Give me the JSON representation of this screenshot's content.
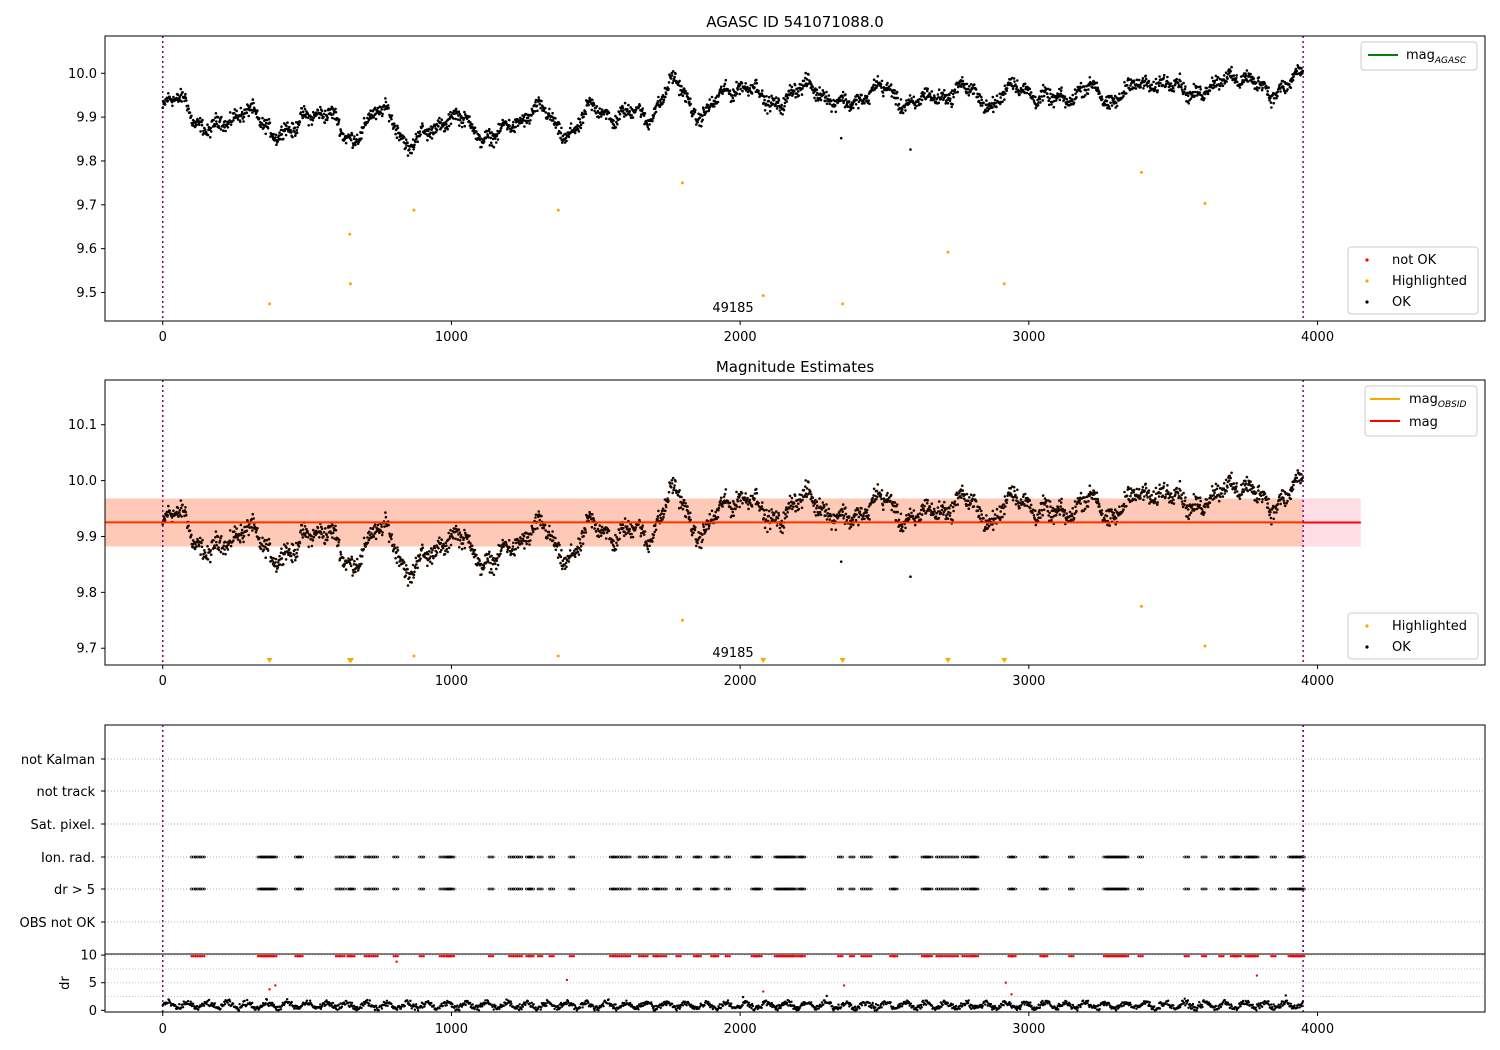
{
  "figure": {
    "obsid_label": "49185"
  },
  "chart_data": [
    {
      "type": "scatter",
      "title": "AGASC ID 541071088.0",
      "xlim": [
        -200,
        4580
      ],
      "ylim": [
        9.435,
        10.085
      ],
      "xticks": [
        0,
        1000,
        2000,
        3000,
        4000
      ],
      "yticks": [
        9.5,
        9.6,
        9.7,
        9.8,
        9.9,
        10.0
      ],
      "ytick_labels": [
        "9.5",
        "9.6",
        "9.7",
        "9.8",
        "9.9",
        "10.0"
      ],
      "vlines": [
        0,
        3950
      ],
      "legend_top": {
        "position": "upper right",
        "entries": [
          {
            "label": "mag",
            "sub": "AGASC",
            "color": "#008000"
          }
        ]
      },
      "legend_bottom": {
        "position": "lower right",
        "entries": [
          {
            "label": "not OK",
            "color": "#ff0000"
          },
          {
            "label": "Highlighted",
            "color": "#ffa500"
          },
          {
            "label": "OK",
            "color": "#000000"
          }
        ]
      },
      "highlighted": {
        "x": [
          370,
          648,
          650,
          870,
          1370,
          1800,
          2080,
          2355,
          2720,
          2915,
          3390,
          3610
        ],
        "y": [
          9.474,
          9.633,
          9.52,
          9.688,
          9.688,
          9.75,
          9.493,
          9.474,
          9.592,
          9.52,
          9.774,
          9.703
        ]
      },
      "outliers": {
        "x": [
          2350,
          2590
        ],
        "y": [
          9.852,
          9.826
        ]
      },
      "series_ok_segments": [
        {
          "x": [
            0,
            40,
            80,
            110,
            150,
            190,
            230,
            270,
            310,
            350,
            390,
            420,
            460,
            500,
            540,
            580,
            620,
            660,
            700,
            740,
            780,
            810,
            850,
            890,
            930,
            970,
            1010,
            1050,
            1090,
            1130,
            1170,
            1200,
            1240,
            1280,
            1320,
            1360,
            1400,
            1440,
            1480,
            1520,
            1560,
            1600,
            1640,
            1680,
            1720,
            1760,
            1800,
            1840,
            1880,
            1920,
            1960,
            2000,
            2040,
            2080,
            2120,
            2160,
            2200,
            2240,
            2280,
            2320,
            2360,
            2400,
            2440,
            2480,
            2520,
            2560,
            2600,
            2640,
            2680,
            2720,
            2760,
            2800,
            2840,
            2880,
            2920,
            2960,
            3000,
            3040,
            3080,
            3120,
            3160,
            3200,
            3240,
            3280,
            3320,
            3360,
            3400,
            3440,
            3480,
            3520,
            3560,
            3600,
            3640,
            3680,
            3720,
            3760,
            3800,
            3840,
            3880,
            3920,
            3950
          ],
          "y": [
            9.92,
            9.935,
            9.94,
            9.9,
            9.865,
            9.875,
            9.895,
            9.92,
            9.905,
            9.875,
            9.87,
            9.875,
            9.865,
            9.905,
            9.915,
            9.915,
            9.855,
            9.845,
            9.895,
            9.905,
            9.905,
            9.885,
            9.835,
            9.85,
            9.865,
            9.895,
            9.905,
            9.885,
            9.86,
            9.86,
            9.865,
            9.87,
            9.89,
            9.925,
            9.915,
            9.87,
            9.865,
            9.885,
            9.915,
            9.915,
            9.905,
            9.905,
            9.91,
            9.9,
            9.935,
            9.975,
            9.965,
            9.915,
            9.905,
            9.935,
            9.965,
            9.975,
            9.965,
            9.935,
            9.935,
            9.945,
            9.955,
            9.975,
            9.965,
            9.93,
            9.925,
            9.94,
            9.955,
            9.965,
            9.955,
            9.94,
            9.93,
            9.935,
            9.95,
            9.955,
            9.965,
            9.955,
            9.945,
            9.925,
            9.955,
            9.975,
            9.965,
            9.94,
            9.935,
            9.945,
            9.955,
            9.965,
            9.955,
            9.935,
            9.955,
            9.965,
            9.975,
            9.985,
            9.975,
            9.965,
            9.96,
            9.965,
            9.96,
            9.99,
            10.0,
            9.985,
            9.965,
            9.955,
            9.975,
            9.985,
            9.995
          ]
        }
      ]
    },
    {
      "type": "scatter",
      "title": "Magnitude Estimates",
      "xlim": [
        -200,
        4580
      ],
      "ylim": [
        9.67,
        10.18
      ],
      "xticks": [
        0,
        1000,
        2000,
        3000,
        4000
      ],
      "yticks": [
        9.7,
        9.8,
        9.9,
        10.0,
        10.1
      ],
      "ytick_labels": [
        "9.7",
        "9.8",
        "9.9",
        "10.0",
        "10.1"
      ],
      "vlines": [
        0,
        3950
      ],
      "mag_line": {
        "y": 9.925,
        "color": "#ff0000"
      },
      "mag_band": {
        "y0": 9.882,
        "y1": 9.968,
        "xmax": 4150
      },
      "obsid_band": {
        "y0": 9.882,
        "y1": 9.968,
        "xmax": 3950
      },
      "legend_top": {
        "position": "upper right",
        "entries": [
          {
            "label": "mag",
            "sub": "OBSID",
            "color": "#ffa500"
          },
          {
            "label": "mag",
            "color": "#ff0000"
          }
        ]
      },
      "legend_bottom": {
        "position": "lower right",
        "entries": [
          {
            "label": "Highlighted",
            "color": "#ffa500"
          },
          {
            "label": "OK",
            "color": "#000000"
          }
        ]
      },
      "highlighted": {
        "x": [
          870,
          1370,
          1800,
          3390,
          3610
        ],
        "y": [
          9.686,
          9.686,
          9.75,
          9.775,
          9.704
        ]
      },
      "below_limit_markers": {
        "x": [
          370,
          648,
          652,
          2080,
          2355,
          2720,
          2915
        ]
      },
      "outliers": {
        "x": [
          2350,
          2590
        ],
        "y": [
          9.855,
          9.828
        ]
      }
    },
    {
      "type": "scatter",
      "title": "",
      "categories": [
        "not Kalman",
        "not track",
        "Sat. pixel.",
        "Ion. rad.",
        "dr > 5",
        "OBS not OK"
      ],
      "xlim": [
        -200,
        4580
      ],
      "flag_x": [
        100,
        115,
        130,
        330,
        340,
        350,
        360,
        370,
        380,
        460,
        470,
        600,
        615,
        640,
        650,
        700,
        715,
        730,
        800,
        890,
        960,
        975,
        985,
        995,
        1130,
        1200,
        1215,
        1230,
        1260,
        1270,
        1300,
        1340,
        1410,
        1550,
        1560,
        1575,
        1590,
        1605,
        1650,
        1665,
        1700,
        1710,
        1730,
        1780,
        1840,
        1850,
        1900,
        1910,
        1950,
        2040,
        2050,
        2060,
        2120,
        2130,
        2140,
        2150,
        2160,
        2170,
        2180,
        2200,
        2210,
        2340,
        2380,
        2420,
        2440,
        2520,
        2530,
        2630,
        2640,
        2650,
        2680,
        2700,
        2720,
        2740,
        2770,
        2790,
        2800,
        2810,
        2930,
        2940,
        3040,
        3050,
        3140,
        3260,
        3270,
        3280,
        3290,
        3300,
        3310,
        3320,
        3330,
        3380,
        3540,
        3600,
        3660,
        3700,
        3710,
        3720,
        3750,
        3760,
        3770,
        3780,
        3840,
        3900,
        3910,
        3920,
        3930,
        3940
      ],
      "vlines": [
        0,
        3950
      ]
    },
    {
      "type": "scatter",
      "title": "",
      "ylabel": "dr",
      "xlim": [
        -200,
        4580
      ],
      "ylim": [
        -0.3,
        10.2
      ],
      "xticks": [
        0,
        1000,
        2000,
        3000,
        4000
      ],
      "yticks": [
        0,
        5,
        10
      ],
      "ytick_labels": [
        "0",
        "5",
        "10"
      ],
      "vlines": [
        0,
        3950
      ],
      "red_points": {
        "x": [
          370,
          390,
          810,
          1400,
          2080,
          2360,
          2920,
          2940,
          3790
        ],
        "y": [
          3.8,
          4.5,
          8.8,
          5.5,
          3.4,
          4.5,
          5.0,
          2.9,
          6.3
        ]
      },
      "black_outliers": {
        "x": [
          2010,
          2300,
          3890
        ],
        "y": [
          2.4,
          2.6,
          2.7
        ]
      }
    }
  ]
}
